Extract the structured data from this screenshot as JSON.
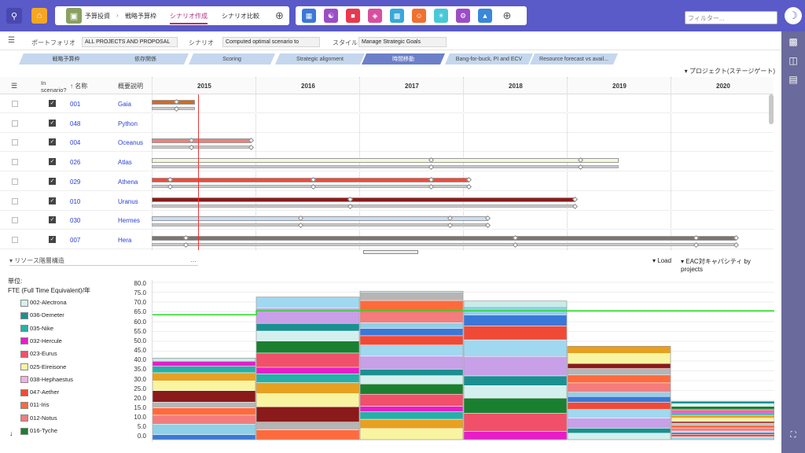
{
  "topbar": {
    "breadcrumbs": [
      "予算投資",
      "戦略予算枠",
      "シナリオ作成",
      "シナリオ比較"
    ],
    "filter_placeholder": "フィルター..."
  },
  "params": {
    "portfolio_label": "ポートフォリオ",
    "portfolio_value": "ALL PROJECTS AND PROPOSAL",
    "scenario_label": "シナリオ",
    "scenario_value": "Computed optimal scenario to",
    "style_label": "スタイル",
    "style_value": "Manage Strategic Goals"
  },
  "tabs": [
    "戦略予算枠",
    "依存関係",
    "Scoring",
    "Strategic alignment",
    "時間移動",
    "Bang-for-buck, PI and ECV",
    "Resource forecast vs avail..."
  ],
  "view_label": "プロジェクト(ステージゲート)",
  "gantt": {
    "col_scenario": "In scenario?",
    "col_name": "名称",
    "col_desc": "概要説明",
    "years": [
      "2015",
      "2016",
      "2017",
      "2018",
      "2019",
      "2020"
    ],
    "rows": [
      {
        "id": "001",
        "name": "Gaia",
        "color": "#d4691d",
        "start": 0,
        "end": 0.07,
        "diam": [
          0.04
        ]
      },
      {
        "id": "048",
        "name": "Python",
        "color": "",
        "start": 0,
        "end": 0,
        "diam": []
      },
      {
        "id": "004",
        "name": "Oceanus",
        "color": "#e8837a",
        "start": 0,
        "end": 0.16,
        "diam": [
          0.065,
          0.16
        ]
      },
      {
        "id": "026",
        "name": "Atlas",
        "color": "#f6f6d8",
        "start": 0,
        "end": 0.75,
        "diam": [
          0.45,
          0.69
        ]
      },
      {
        "id": "029",
        "name": "Athena",
        "color": "#f04a37",
        "start": 0,
        "end": 0.51,
        "diam": [
          0.03,
          0.26,
          0.45,
          0.51
        ]
      },
      {
        "id": "010",
        "name": "Uranus",
        "color": "#8b1a1a",
        "start": 0,
        "end": 0.68,
        "diam": [
          0.32,
          0.68
        ]
      },
      {
        "id": "030",
        "name": "Hermes",
        "color": "#c6dff5",
        "start": 0,
        "end": 0.54,
        "diam": [
          0.24,
          0.48,
          0.54
        ]
      },
      {
        "id": "007",
        "name": "Hera",
        "color": "#7d756f",
        "start": 0,
        "end": 0.94,
        "diam": [
          0.055,
          0.585,
          0.875,
          0.94
        ]
      }
    ]
  },
  "resources": {
    "label": "リソース階層構造",
    "load_label": "Load",
    "capacity_label": "EAC対キャパシティ by projects",
    "unit_label": "単位:",
    "unit_value": "FTE (Full Time Equivalent)/年",
    "legend": [
      {
        "name": "002-Alectrona",
        "color": "#d4f0ee"
      },
      {
        "name": "036-Demeter",
        "color": "#1a9090"
      },
      {
        "name": "035-Nike",
        "color": "#26b0a8"
      },
      {
        "name": "032-Hercule",
        "color": "#e61ec8"
      },
      {
        "name": "023-Eurus",
        "color": "#f0506a"
      },
      {
        "name": "025-Eireisone",
        "color": "#f8f4a0"
      },
      {
        "name": "038-Hephaestus",
        "color": "#f4b0e0"
      },
      {
        "name": "047-Aether",
        "color": "#f04a37"
      },
      {
        "name": "011-Iris",
        "color": "#ff6a3d"
      },
      {
        "name": "012-Notus",
        "color": "#f47c7c"
      },
      {
        "name": "016-Tyche",
        "color": "#1a8030"
      }
    ],
    "yticks": [
      "80.0",
      "75.0",
      "70.0",
      "65.0",
      "60.0",
      "55.0",
      "50.0",
      "45.0",
      "40.0",
      "35.0",
      "30.0",
      "25.0",
      "20.0",
      "15.0",
      "10.0",
      "5.0",
      "0.0"
    ]
  },
  "chart_data": {
    "type": "bar",
    "title": "EAC対キャパシティ by projects",
    "ylabel": "FTE (Full Time Equivalent)/年",
    "ylim": [
      0,
      80
    ],
    "categories": [
      "2015",
      "2016",
      "2017",
      "2018",
      "2019",
      "2020"
    ],
    "totals": [
      41.5,
      72.5,
      75.5,
      70.5,
      47.5,
      19.5
    ],
    "capacity": 65.5
  }
}
